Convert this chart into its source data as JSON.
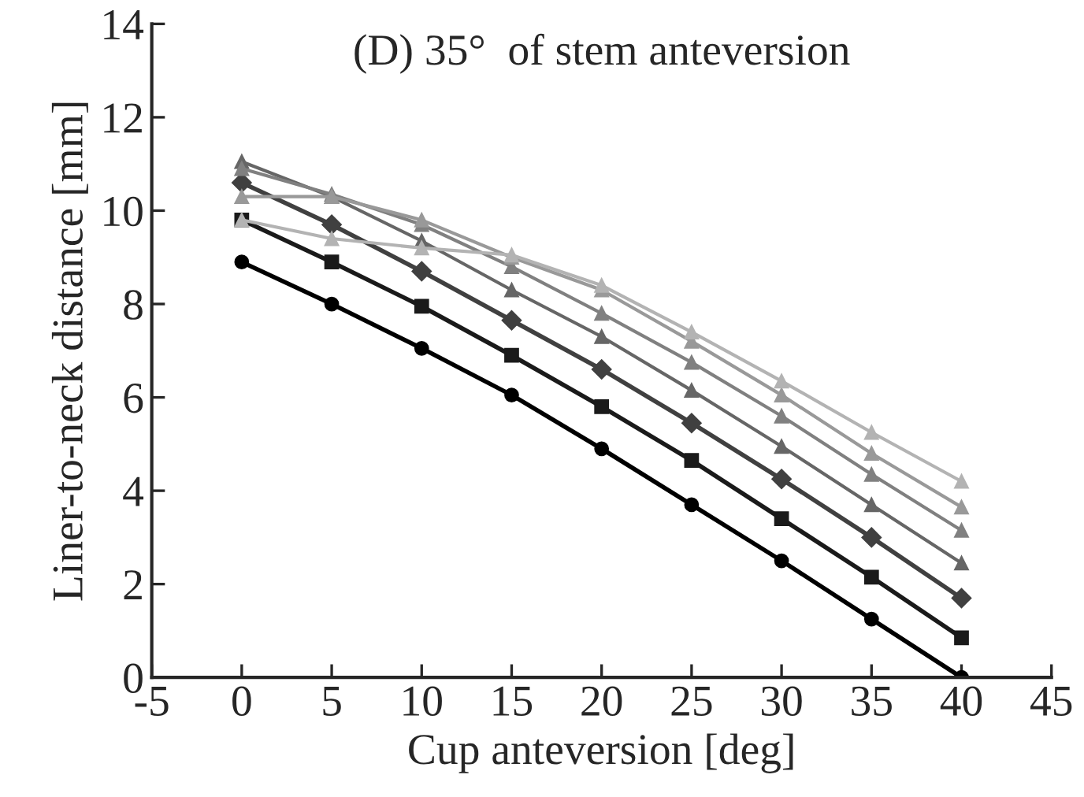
{
  "chart_data": {
    "type": "line",
    "title": "(D) 35°  of stem anteversion",
    "xlabel": "Cup anteversion [deg]",
    "ylabel": "Liner-to-neck distance [mm]",
    "x": [
      0,
      5,
      10,
      15,
      20,
      25,
      30,
      35,
      40
    ],
    "series": [
      {
        "color": "#000000",
        "marker": "circle",
        "values": [
          8.9,
          8.0,
          7.05,
          6.05,
          4.9,
          3.7,
          2.5,
          1.25,
          0.0
        ]
      },
      {
        "color": "#1a1a1a",
        "marker": "square",
        "values": [
          9.8,
          8.9,
          7.95,
          6.9,
          5.8,
          4.65,
          3.4,
          2.15,
          0.85
        ]
      },
      {
        "color": "#404040",
        "marker": "diamond",
        "values": [
          10.6,
          9.7,
          8.7,
          7.65,
          6.6,
          5.45,
          4.25,
          3.0,
          1.7
        ]
      },
      {
        "color": "#666666",
        "marker": "triangle",
        "values": [
          11.05,
          10.3,
          9.35,
          8.3,
          7.3,
          6.15,
          4.95,
          3.7,
          2.45
        ]
      },
      {
        "color": "#808080",
        "marker": "triangle",
        "values": [
          10.9,
          10.35,
          9.7,
          8.8,
          7.8,
          6.75,
          5.6,
          4.35,
          3.15
        ]
      },
      {
        "color": "#999999",
        "marker": "triangle",
        "values": [
          10.3,
          10.3,
          9.8,
          9.0,
          8.3,
          7.2,
          6.05,
          4.8,
          3.65
        ]
      },
      {
        "color": "#b3b3b3",
        "marker": "triangle",
        "values": [
          9.8,
          9.4,
          9.2,
          9.05,
          8.4,
          7.4,
          6.35,
          5.25,
          4.2
        ]
      }
    ],
    "xlim": [
      -5,
      45
    ],
    "xticks": [
      -5,
      0,
      5,
      10,
      15,
      20,
      25,
      30,
      35,
      40,
      45
    ],
    "ylim": [
      0,
      14
    ],
    "yticks": [
      0,
      2,
      4,
      6,
      8,
      10,
      12,
      14
    ],
    "grid": false,
    "legend": false,
    "line_style": "solid"
  }
}
